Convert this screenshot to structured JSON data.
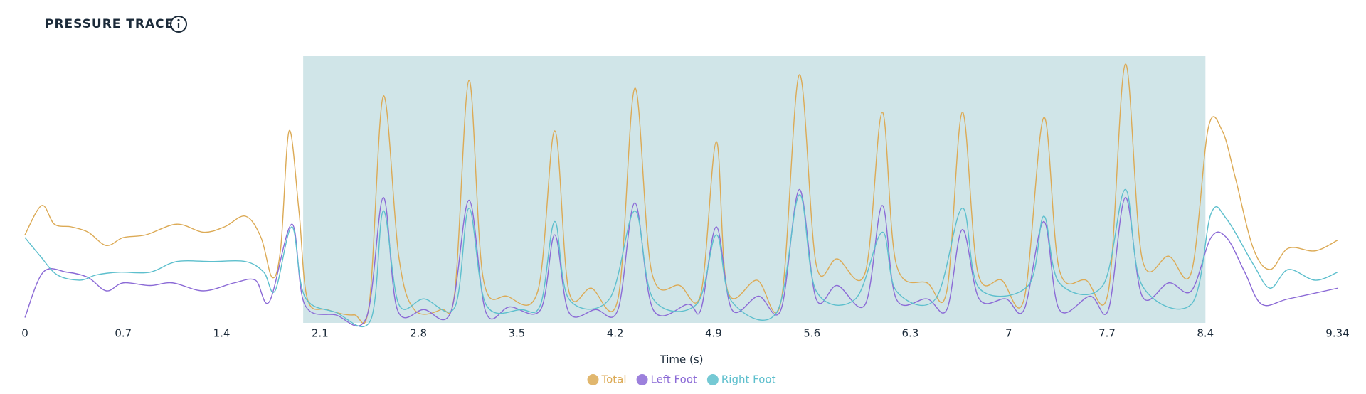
{
  "chart_data": {
    "type": "line",
    "title": "PRESSURE TRACE",
    "x_label": "Time (s)",
    "xlim": [
      0,
      9.34
    ],
    "xticks": [
      0,
      0.7,
      1.4,
      2.1,
      2.8,
      3.5,
      4.2,
      4.9,
      5.6,
      6.3,
      7,
      7.7,
      8.4,
      9.34
    ],
    "ylim": [
      0,
      100
    ],
    "grid": false,
    "legend": "bottom",
    "highlight": [
      1.98,
      8.4
    ],
    "highlight_color": "#d0e5e8",
    "series": [
      {
        "name": "Total",
        "color": "#dcaa55",
        "x": [
          0,
          0.12,
          0.21,
          0.33,
          0.45,
          0.58,
          0.7,
          0.86,
          1.08,
          1.27,
          1.42,
          1.57,
          1.68,
          1.76,
          1.82,
          1.88,
          1.95,
          2.01,
          2.15,
          2.34,
          2.45,
          2.55,
          2.66,
          2.77,
          2.96,
          3.06,
          3.16,
          3.26,
          3.43,
          3.65,
          3.77,
          3.87,
          4.03,
          4.22,
          4.34,
          4.46,
          4.66,
          4.81,
          4.92,
          5.0,
          5.21,
          5.38,
          5.51,
          5.63,
          5.78,
          5.98,
          6.1,
          6.2,
          6.42,
          6.56,
          6.67,
          6.78,
          6.95,
          7.11,
          7.25,
          7.36,
          7.55,
          7.71,
          7.83,
          7.95,
          8.14,
          8.3,
          8.42,
          8.52,
          8.61,
          8.74,
          8.86,
          8.99,
          9.18,
          9.34
        ],
        "values": [
          33,
          44,
          37,
          36,
          34,
          29,
          32,
          33,
          37,
          34,
          36,
          40,
          32,
          17,
          28,
          72,
          42,
          9,
          5,
          3,
          7,
          85,
          25,
          5,
          5,
          12,
          91,
          17,
          10,
          12,
          72,
          12,
          13,
          9,
          88,
          19,
          14,
          11,
          68,
          12,
          16,
          8,
          93,
          22,
          24,
          19,
          79,
          22,
          15,
          12,
          79,
          19,
          16,
          9,
          77,
          20,
          16,
          12,
          97,
          24,
          25,
          19,
          73,
          72,
          55,
          28,
          20,
          28,
          27,
          31
        ]
      },
      {
        "name": "Left Foot",
        "color": "#8b6ad6",
        "x": [
          0,
          0.13,
          0.3,
          0.45,
          0.58,
          0.7,
          0.89,
          1.05,
          1.27,
          1.49,
          1.64,
          1.74,
          1.9,
          1.99,
          2.21,
          2.43,
          2.55,
          2.65,
          2.84,
          3.03,
          3.16,
          3.28,
          3.45,
          3.67,
          3.77,
          3.87,
          4.06,
          4.22,
          4.34,
          4.47,
          4.72,
          4.81,
          4.92,
          5.03,
          5.22,
          5.38,
          5.51,
          5.63,
          5.78,
          5.98,
          6.1,
          6.2,
          6.42,
          6.56,
          6.67,
          6.79,
          6.98,
          7.11,
          7.25,
          7.36,
          7.58,
          7.71,
          7.83,
          7.95,
          8.14,
          8.3,
          8.44,
          8.55,
          8.68,
          8.8,
          8.99,
          9.34
        ],
        "values": [
          2,
          19,
          19,
          17,
          12,
          15,
          14,
          15,
          12,
          15,
          16,
          8,
          37,
          7,
          3,
          2,
          47,
          5,
          5,
          4,
          46,
          4,
          6,
          5,
          33,
          4,
          5,
          5,
          45,
          5,
          7,
          5,
          36,
          5,
          10,
          5,
          50,
          9,
          14,
          7,
          44,
          9,
          9,
          5,
          35,
          9,
          9,
          5,
          38,
          5,
          10,
          5,
          47,
          10,
          15,
          12,
          32,
          32,
          19,
          7,
          9,
          13
        ]
      },
      {
        "name": "Right Foot",
        "color": "#5dbfcd",
        "x": [
          0,
          0.11,
          0.23,
          0.39,
          0.51,
          0.67,
          0.89,
          1.08,
          1.33,
          1.57,
          1.7,
          1.78,
          1.9,
          1.99,
          2.21,
          2.46,
          2.55,
          2.66,
          2.84,
          3.06,
          3.16,
          3.28,
          3.53,
          3.67,
          3.77,
          3.87,
          4.16,
          4.34,
          4.47,
          4.78,
          4.92,
          5.03,
          5.35,
          5.51,
          5.63,
          5.91,
          6.1,
          6.2,
          6.48,
          6.67,
          6.79,
          7.14,
          7.25,
          7.36,
          7.67,
          7.83,
          7.95,
          8.3,
          8.44,
          8.55,
          8.74,
          8.86,
          8.99,
          9.18,
          9.34
        ],
        "values": [
          32,
          25,
          18,
          16,
          18,
          19,
          19,
          23,
          23,
          23,
          19,
          12,
          36,
          10,
          4,
          1,
          42,
          7,
          9,
          6,
          43,
          7,
          5,
          7,
          38,
          9,
          9,
          42,
          9,
          7,
          33,
          8,
          4,
          48,
          12,
          9,
          34,
          12,
          9,
          43,
          13,
          14,
          40,
          15,
          14,
          50,
          14,
          7,
          41,
          39,
          22,
          13,
          20,
          16,
          19
        ]
      }
    ]
  }
}
